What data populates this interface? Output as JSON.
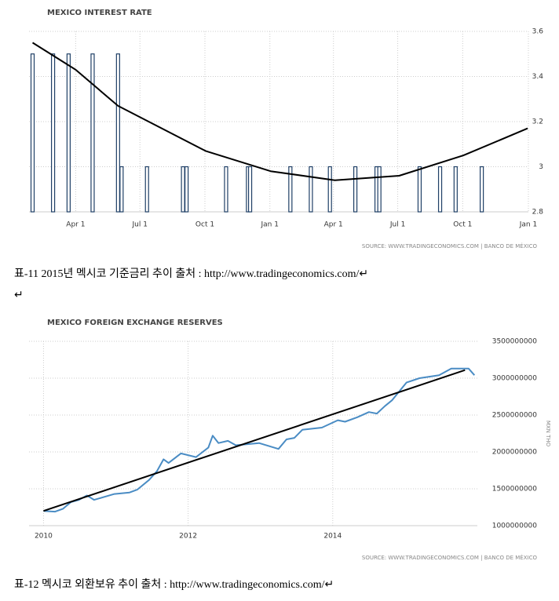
{
  "chart_data": [
    {
      "type": "bar",
      "title": "MEXICO INTEREST RATE",
      "source": "SOURCE: WWW.TRADINGECONOMICS.COM | BANCO DE MÉXICO",
      "xlim": [
        24,
        731
      ],
      "xticks": [
        {
          "value": 90,
          "label": "Apr 1"
        },
        {
          "value": 181,
          "label": "Jul 1"
        },
        {
          "value": 273,
          "label": "Oct 1"
        },
        {
          "value": 365,
          "label": "Jan 1"
        },
        {
          "value": 455,
          "label": "Apr 1"
        },
        {
          "value": 546,
          "label": "Jul 1"
        },
        {
          "value": 638,
          "label": "Oct 1"
        },
        {
          "value": 731,
          "label": "Jan 1"
        }
      ],
      "ylim": [
        2.8,
        3.6
      ],
      "yticks": [
        2.8,
        3,
        3.2,
        3.4,
        3.6
      ],
      "grid": true,
      "series": [
        {
          "color": "#1f3f66",
          "x": [
            29,
            58,
            80,
            114,
            150,
            155,
            191,
            242,
            247,
            303,
            334,
            337,
            394,
            423,
            450,
            486,
            516,
            520,
            577,
            606,
            628,
            665
          ],
          "values": [
            3.5,
            3.5,
            3.5,
            3.5,
            3.5,
            3,
            3,
            3,
            3,
            3,
            3,
            3,
            3,
            3,
            3,
            3,
            3,
            3,
            3,
            3,
            3,
            3
          ]
        },
        {
          "type": "line",
          "color": "#000000",
          "x": [
            29,
            90,
            150,
            274,
            366,
            457,
            548,
            639,
            730
          ],
          "values": [
            3.55,
            3.43,
            3.27,
            3.07,
            2.98,
            2.94,
            2.96,
            3.05,
            3.17
          ]
        }
      ]
    },
    {
      "type": "line",
      "title": "MEXICO FOREIGN EXCHANGE RESERVES",
      "source": "SOURCE: WWW.TRADINGECONOMICS.COM | BANCO DE MÉXICO",
      "y_axis_label": "MXN THO",
      "xlim": [
        2009.8,
        2016
      ],
      "xticks": [
        2010,
        2012,
        2014
      ],
      "ylim": [
        1000000000,
        3500000000
      ],
      "yticks": [
        1000000000,
        1500000000,
        2000000000,
        2500000000,
        3000000000,
        3500000000
      ],
      "grid": true,
      "series": [
        {
          "color": "#4a8cc4",
          "x": [
            2010.0,
            2010.16,
            2010.27,
            2010.38,
            2010.49,
            2010.6,
            2010.7,
            2010.98,
            2011.19,
            2011.3,
            2011.46,
            2011.57,
            2011.66,
            2011.73,
            2011.9,
            2012.11,
            2012.28,
            2012.34,
            2012.42,
            2012.55,
            2012.66,
            2012.98,
            2013.25,
            2013.36,
            2013.47,
            2013.58,
            2013.85,
            2014.07,
            2014.17,
            2014.34,
            2014.5,
            2014.61,
            2014.72,
            2014.82,
            2015.02,
            2015.2,
            2015.47,
            2015.64,
            2015.88,
            2015.96
          ],
          "values": [
            1200000000,
            1190000000,
            1230000000,
            1320000000,
            1350000000,
            1410000000,
            1350000000,
            1430000000,
            1450000000,
            1490000000,
            1620000000,
            1740000000,
            1900000000,
            1850000000,
            1980000000,
            1930000000,
            2060000000,
            2220000000,
            2120000000,
            2150000000,
            2090000000,
            2120000000,
            2040000000,
            2170000000,
            2190000000,
            2300000000,
            2330000000,
            2430000000,
            2410000000,
            2470000000,
            2540000000,
            2520000000,
            2620000000,
            2700000000,
            2940000000,
            3000000000,
            3040000000,
            3130000000,
            3130000000,
            3040000000
          ]
        },
        {
          "color": "#000000",
          "x": [
            2010.0,
            2015.83
          ],
          "values": [
            1200000000,
            3110000000
          ]
        }
      ]
    }
  ],
  "captions": [
    "표-11 2015년 멕시코 기준금리 추이 출처 : http://www.tradingeconomics.com/↵",
    "↵",
    "표-12 멕시코 외환보유 추이 출처 : http://www.tradingeconomics.com/↵"
  ]
}
